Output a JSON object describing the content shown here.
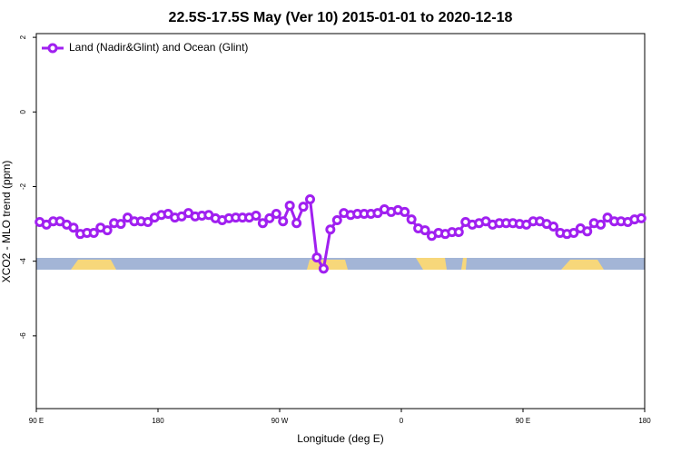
{
  "chart_data": {
    "type": "line",
    "title": "22.5S-17.5S May (Ver 10)   2015-01-01 to 2020-12-18",
    "x_label": "Longitude (deg E)",
    "y_label": "XCO2 - MLO trend (ppm)",
    "x": [
      92.5,
      97.5,
      102.5,
      107.5,
      112.5,
      117.5,
      122.5,
      127.5,
      132.5,
      137.5,
      142.5,
      147.5,
      152.5,
      157.5,
      162.5,
      167.5,
      172.5,
      177.5,
      182.5,
      187.5,
      192.5,
      197.5,
      202.5,
      207.5,
      212.5,
      217.5,
      222.5,
      227.5,
      232.5,
      237.5,
      242.5,
      247.5,
      252.5,
      257.5,
      262.5,
      267.5,
      272.5,
      277.5,
      282.5,
      287.5,
      292.5,
      297.5,
      302.5,
      307.5,
      312.5,
      317.5,
      322.5,
      327.5,
      332.5,
      337.5,
      342.5,
      347.5,
      352.5,
      357.5,
      362.5,
      367.5,
      372.5,
      377.5,
      382.5,
      387.5,
      392.5,
      397.5,
      402.5,
      407.5,
      412.5,
      417.5,
      422.5,
      427.5,
      432.5,
      437.5,
      442.5,
      447.5,
      452.5,
      457.5,
      462.5,
      467.5,
      472.5,
      477.5,
      482.5,
      487.5,
      492.5,
      497.5,
      502.5,
      507.5,
      512.5,
      517.5,
      522.5,
      527.5,
      532.5,
      537.5
    ],
    "series": [
      {
        "name": "Land (Nadir&Glint) and Ocean (Glint)",
        "color": "#a020f0",
        "values": [
          -2.95,
          -3.02,
          -2.93,
          -2.93,
          -3.02,
          -3.1,
          -3.27,
          -3.24,
          -3.24,
          -3.1,
          -3.17,
          -2.98,
          -3.0,
          -2.83,
          -2.93,
          -2.93,
          -2.95,
          -2.83,
          -2.76,
          -2.73,
          -2.83,
          -2.8,
          -2.71,
          -2.8,
          -2.78,
          -2.76,
          -2.85,
          -2.9,
          -2.85,
          -2.83,
          -2.83,
          -2.83,
          -2.78,
          -2.98,
          -2.85,
          -2.73,
          -2.93,
          -2.51,
          -2.98,
          -2.54,
          -2.34,
          -3.9,
          -4.2,
          -3.15,
          -2.9,
          -2.71,
          -2.76,
          -2.73,
          -2.73,
          -2.73,
          -2.71,
          -2.61,
          -2.68,
          -2.63,
          -2.68,
          -2.88,
          -3.12,
          -3.17,
          -3.32,
          -3.24,
          -3.27,
          -3.22,
          -3.22,
          -2.95,
          -3.02,
          -2.98,
          -2.93,
          -3.02,
          -2.98,
          -2.98,
          -2.98,
          -3.0,
          -3.02,
          -2.93,
          -2.93,
          -3.0,
          -3.07,
          -3.24,
          -3.27,
          -3.24,
          -3.12,
          -3.2,
          -2.98,
          -3.02,
          -2.83,
          -2.93,
          -2.93,
          -2.95,
          -2.88,
          -2.85
        ]
      }
    ],
    "xlim": [
      90,
      540
    ],
    "xticks": [
      {
        "value": 90,
        "label": "90 E"
      },
      180,
      {
        "value": 270,
        "label": "90 W"
      },
      {
        "value": 360,
        "label": "0"
      },
      {
        "value": 450,
        "label": "90 E"
      },
      {
        "value": 540,
        "label": "180"
      }
    ],
    "ylim": [
      -7.95,
      2.1
    ],
    "yticks": [
      2,
      0,
      -2,
      -4,
      -6
    ],
    "legend": "top-left"
  }
}
